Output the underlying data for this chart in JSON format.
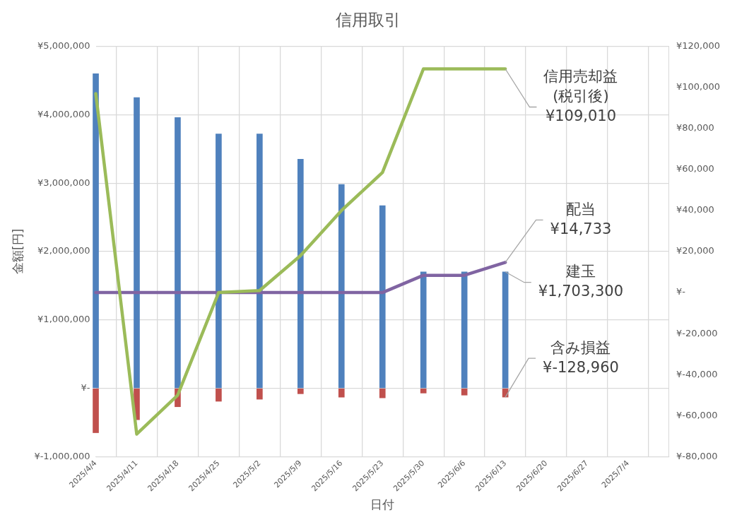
{
  "chart_data": {
    "type": "bar",
    "title": "信用取引",
    "xlabel": "日付",
    "ylabel": "金額[円]",
    "x": [
      "2025-04-04",
      "2025-04-11",
      "2025-04-18",
      "2025-04-25",
      "2025-05-02",
      "2025-05-09",
      "2025-05-16",
      "2025-05-23",
      "2025-05-30",
      "2025-06-06",
      "2025-06-13"
    ],
    "xlim": [
      "2025-04-04",
      "2025-07-11"
    ],
    "xticks": [
      {
        "value": "2025-04-04",
        "label": "2025/4/4"
      },
      {
        "value": "2025-04-11",
        "label": "2025/4/11"
      },
      {
        "value": "2025-04-18",
        "label": "2025/4/18"
      },
      {
        "value": "2025-04-25",
        "label": "2025/4/25"
      },
      {
        "value": "2025-05-02",
        "label": "2025/5/2"
      },
      {
        "value": "2025-05-09",
        "label": "2025/5/9"
      },
      {
        "value": "2025-05-16",
        "label": "2025/5/16"
      },
      {
        "value": "2025-05-23",
        "label": "2025/5/23"
      },
      {
        "value": "2025-05-30",
        "label": "2025/5/30"
      },
      {
        "value": "2025-06-06",
        "label": "2025/6/6"
      },
      {
        "value": "2025-06-13",
        "label": "2025/6/13"
      },
      {
        "value": "2025-06-20",
        "label": "2025/6/20"
      },
      {
        "value": "2025-06-27",
        "label": "2025/6/27"
      },
      {
        "value": "2025-07-04",
        "label": "2025/7/4"
      }
    ],
    "ylim": [
      -1000000,
      5000000
    ],
    "yticks": [
      {
        "value": -1000000,
        "label": "¥-1,000,000"
      },
      {
        "value": 0,
        "label": "¥-"
      },
      {
        "value": 1000000,
        "label": "¥1,000,000"
      },
      {
        "value": 2000000,
        "label": "¥2,000,000"
      },
      {
        "value": 3000000,
        "label": "¥3,000,000"
      },
      {
        "value": 4000000,
        "label": "¥4,000,000"
      },
      {
        "value": 5000000,
        "label": "¥5,000,000"
      }
    ],
    "y2lim": [
      -80000,
      120000
    ],
    "y2ticks": [
      {
        "value": -80000,
        "label": "¥-80,000"
      },
      {
        "value": -60000,
        "label": "¥-60,000"
      },
      {
        "value": -40000,
        "label": "¥-40,000"
      },
      {
        "value": -20000,
        "label": "¥-20,000"
      },
      {
        "value": 0,
        "label": "¥-"
      },
      {
        "value": 20000,
        "label": "¥20,000"
      },
      {
        "value": 40000,
        "label": "¥40,000"
      },
      {
        "value": 60000,
        "label": "¥60,000"
      },
      {
        "value": 80000,
        "label": "¥80,000"
      },
      {
        "value": 100000,
        "label": "¥100,000"
      },
      {
        "value": 120000,
        "label": "¥120,000"
      }
    ],
    "grid": true,
    "legend": false,
    "marker": "none",
    "stacked": true,
    "series": [
      {
        "name": "建玉",
        "color": "#4f81bd",
        "values": [
          4600000,
          4250000,
          3960000,
          3720000,
          3720000,
          3350000,
          2980000,
          2670000,
          1703300,
          1703300,
          1703300
        ],
        "value_labels": [
          null,
          null,
          null,
          null,
          null,
          null,
          null,
          null,
          null,
          null,
          "¥1,703,300"
        ]
      },
      {
        "name": "含み損益",
        "color": "#c0504d",
        "values": [
          -650000,
          -460000,
          -270000,
          -190000,
          -160000,
          -80000,
          -130000,
          -140000,
          -70000,
          -100000,
          -128960
        ],
        "value_labels": [
          null,
          null,
          null,
          null,
          null,
          null,
          null,
          null,
          null,
          null,
          "¥-128,960"
        ]
      },
      {
        "name": "信用売却益\n(税引後)",
        "type": "line",
        "axis": "y2",
        "color": "#9bbb59",
        "values": [
          97000,
          -69000,
          -50000,
          0,
          1000,
          18000,
          40000,
          58500,
          109010,
          109010,
          109010
        ],
        "value_labels": [
          null,
          null,
          null,
          null,
          null,
          null,
          null,
          null,
          null,
          null,
          "¥109,010"
        ]
      },
      {
        "name": "配当",
        "type": "line",
        "axis": "y2",
        "color": "#8064a2",
        "values": [
          0,
          0,
          0,
          0,
          0,
          0,
          0,
          0,
          8400,
          8400,
          14733
        ],
        "value_labels": [
          null,
          null,
          null,
          null,
          null,
          null,
          null,
          null,
          null,
          null,
          "¥14,733"
        ]
      }
    ]
  }
}
